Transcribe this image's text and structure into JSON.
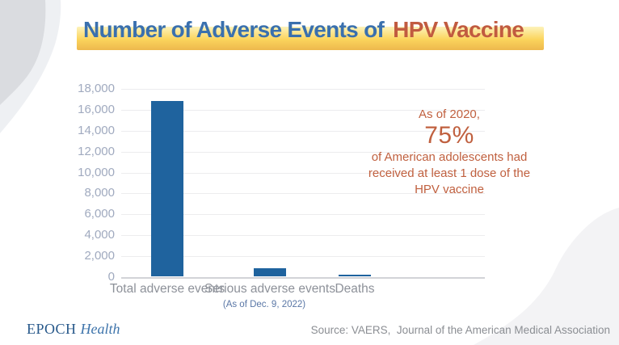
{
  "title": {
    "part1": "Number of Adverse Events of",
    "part2": "HPV Vaccine"
  },
  "chart_data": {
    "type": "bar",
    "categories": [
      "Total adverse events",
      "Serious adverse events",
      "Deaths"
    ],
    "values": [
      16800,
      750,
      180
    ],
    "title": "Number of Adverse Events of HPV Vaccine",
    "xlabel": "",
    "ylabel": "",
    "ylim": [
      0,
      18000
    ],
    "ytick_step": 2000,
    "grid": true,
    "legend": "none",
    "bar_color": "#1f639e",
    "note": "(As of Dec. 9, 2022)"
  },
  "annotation": {
    "line1": "As of 2020,",
    "big": "75%",
    "line2": "of American adolescents had",
    "line3": "received at least 1 dose of the",
    "line4": "HPV vaccine"
  },
  "footer": {
    "brand_primary": "EPOCH",
    "brand_secondary": "Health",
    "source": "Source: VAERS,  Journal of the American Medical Association"
  },
  "colors": {
    "title_blue": "#3a70ae",
    "title_orange": "#c15b40",
    "band_gold": "#fbd45c",
    "bar_blue": "#1f639e",
    "ytick_gray_blue": "#a0aabf",
    "xlabel_gray": "#8d9199",
    "note_blue": "#5a77a6",
    "annotation_orange": "#c0603f",
    "source_gray": "#8b8e93",
    "brand_navy": "#27588a"
  }
}
